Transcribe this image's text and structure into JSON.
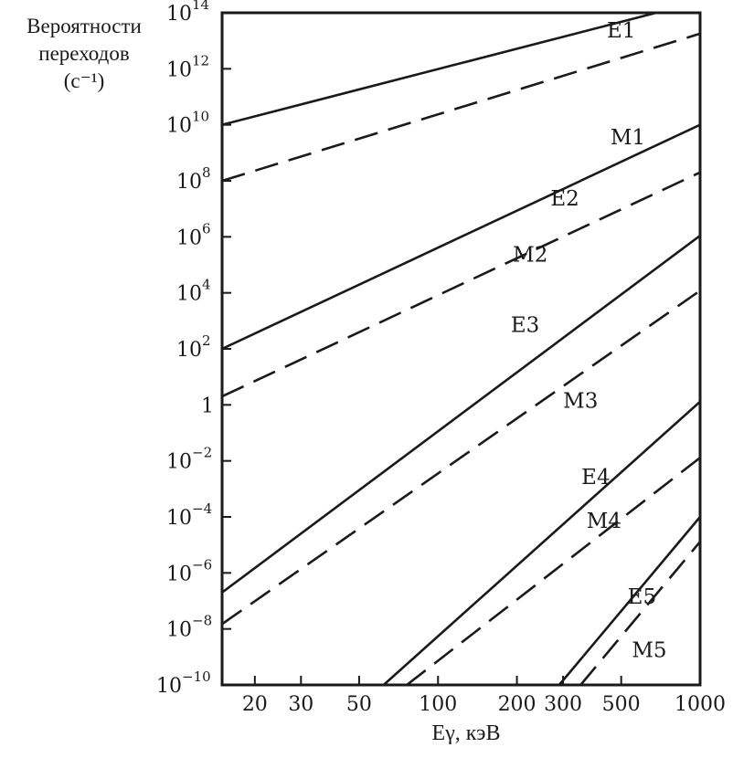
{
  "chart_data": {
    "type": "line",
    "ylabel_lines": [
      "Вероятности",
      "переходов",
      "(с⁻¹)"
    ],
    "xlabel": "Eγ, кэВ",
    "x_scale": "log",
    "y_scale": "log",
    "xlim": [
      15,
      1000
    ],
    "ylim": [
      1e-10,
      100000000000000.0
    ],
    "x_ticks": [
      {
        "value": 20,
        "label": "20"
      },
      {
        "value": 30,
        "label": "30"
      },
      {
        "value": 50,
        "label": "50"
      },
      {
        "value": 100,
        "label": "100"
      },
      {
        "value": 200,
        "label": "200"
      },
      {
        "value": 300,
        "label": "300"
      },
      {
        "value": 500,
        "label": "500"
      },
      {
        "value": 1000,
        "label": "1000"
      }
    ],
    "y_ticks": [
      {
        "value": 100000000000000.0,
        "base": "10",
        "exp": "14"
      },
      {
        "value": 1000000000000.0,
        "base": "10",
        "exp": "12"
      },
      {
        "value": 10000000000.0,
        "base": "10",
        "exp": "10"
      },
      {
        "value": 100000000.0,
        "base": "10",
        "exp": "8"
      },
      {
        "value": 1000000.0,
        "base": "10",
        "exp": "6"
      },
      {
        "value": 10000.0,
        "base": "10",
        "exp": "4"
      },
      {
        "value": 100.0,
        "base": "10",
        "exp": "2"
      },
      {
        "value": 1,
        "base": "1",
        "exp": ""
      },
      {
        "value": 0.01,
        "base": "10",
        "exp": "−2"
      },
      {
        "value": 0.0001,
        "base": "10",
        "exp": "−4"
      },
      {
        "value": 1e-06,
        "base": "10",
        "exp": "−6"
      },
      {
        "value": 1e-08,
        "base": "10",
        "exp": "−8"
      },
      {
        "value": 1e-10,
        "base": "10",
        "exp": "−10"
      }
    ],
    "series": [
      {
        "name": "E1",
        "style": "solid",
        "x": [
          15,
          680
        ],
        "y": [
          10000000000.0,
          100000000000000.0
        ],
        "label_at": [
          500,
          13000000000000.0
        ]
      },
      {
        "name": "M1",
        "style": "dashed",
        "x": [
          15,
          1000
        ],
        "y": [
          100000000.0,
          18000000000000.0
        ],
        "label_at": [
          530,
          2000000000.0
        ]
      },
      {
        "name": "E2",
        "style": "solid",
        "x": [
          15,
          1000
        ],
        "y": [
          100.0,
          10000000000.0
        ],
        "label_at": [
          305,
          13000000.0
        ]
      },
      {
        "name": "M2",
        "style": "dashed",
        "x": [
          15,
          1000
        ],
        "y": [
          2,
          200000000.0
        ],
        "label_at": [
          225,
          130000.0
        ]
      },
      {
        "name": "E3",
        "style": "solid",
        "x": [
          15,
          1000
        ],
        "y": [
          2e-07,
          1100000.0
        ],
        "label_at": [
          215,
          400.0
        ]
      },
      {
        "name": "M3",
        "style": "dashed",
        "x": [
          15,
          1000
        ],
        "y": [
          1.5e-08,
          12000.0
        ],
        "label_at": [
          350,
          0.8
        ]
      },
      {
        "name": "E4",
        "style": "solid",
        "x": [
          62,
          1000
        ],
        "y": [
          1e-10,
          1.3
        ],
        "label_at": [
          400,
          0.0015
        ]
      },
      {
        "name": "M4",
        "style": "dashed",
        "x": [
          76,
          1000
        ],
        "y": [
          1e-10,
          0.013
        ],
        "label_at": [
          430,
          4e-05
        ]
      },
      {
        "name": "E5",
        "style": "solid",
        "x": [
          290,
          1000
        ],
        "y": [
          1e-10,
          0.0001
        ],
        "label_at": [
          600,
          8e-08
        ]
      },
      {
        "name": "M5",
        "style": "dashed",
        "x": [
          350,
          1000
        ],
        "y": [
          1e-10,
          1.3e-05
        ],
        "label_at": [
          640,
          1e-09
        ]
      }
    ]
  }
}
